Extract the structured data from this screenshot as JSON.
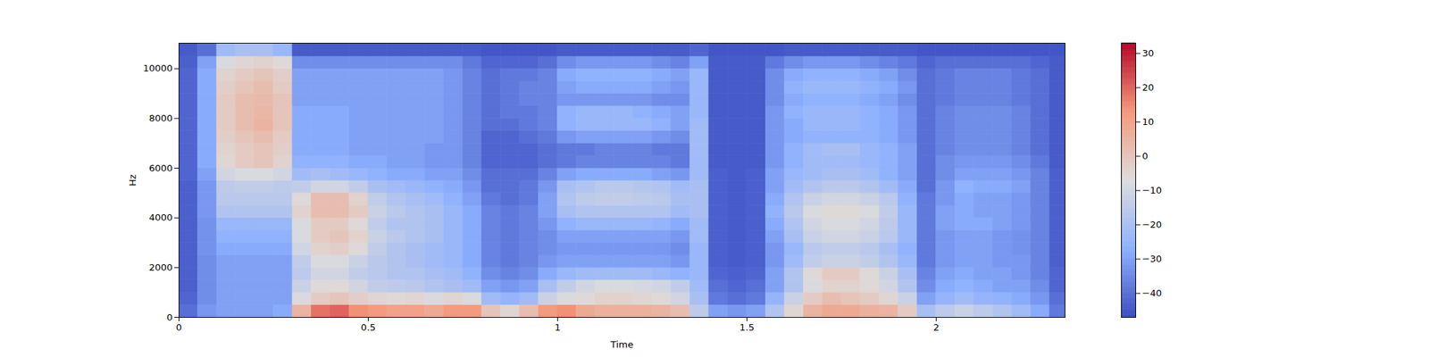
{
  "chart_data": {
    "type": "heatmap",
    "x_label": "Time",
    "y_label": "Hz",
    "xlim": [
      0,
      2.34
    ],
    "ylim": [
      0,
      11025
    ],
    "xticks": [
      0,
      0.5,
      1,
      1.5,
      2
    ],
    "yticks": [
      0,
      2000,
      4000,
      6000,
      8000,
      10000
    ],
    "time_bins": [
      0,
      0.05,
      0.1,
      0.15,
      0.2,
      0.25,
      0.3,
      0.35,
      0.4,
      0.45,
      0.5,
      0.55,
      0.6,
      0.65,
      0.7,
      0.75,
      0.8,
      0.85,
      0.9,
      0.95,
      1.0,
      1.05,
      1.1,
      1.15,
      1.2,
      1.25,
      1.3,
      1.35,
      1.4,
      1.45,
      1.5,
      1.55,
      1.6,
      1.65,
      1.7,
      1.75,
      1.8,
      1.85,
      1.9,
      1.95,
      2.0,
      2.05,
      2.1,
      2.15,
      2.2,
      2.25,
      2.3,
      2.34
    ],
    "freq_bins": [
      0,
      500,
      1000,
      1500,
      2000,
      2500,
      3000,
      3500,
      4000,
      4500,
      5000,
      5500,
      6000,
      6500,
      7000,
      7500,
      8000,
      8500,
      9000,
      9500,
      10000,
      10500,
      11025
    ],
    "cells": [
      [
        -40,
        -32,
        -30,
        -30,
        -30,
        -28,
        5,
        18,
        20,
        14,
        12,
        10,
        10,
        8,
        12,
        12,
        0,
        -5,
        2,
        12,
        14,
        8,
        6,
        6,
        6,
        5,
        2,
        -15,
        -30,
        -32,
        -30,
        -18,
        -5,
        5,
        8,
        8,
        6,
        5,
        -2,
        -20,
        -15,
        -12,
        -15,
        -18,
        -22,
        -28,
        -38
      ],
      [
        -42,
        -34,
        -30,
        -30,
        -30,
        -30,
        -8,
        -2,
        0,
        -3,
        -5,
        -6,
        -5,
        -8,
        -5,
        -8,
        -22,
        -25,
        -22,
        -12,
        -8,
        -6,
        -4,
        -4,
        -5,
        -6,
        -10,
        -20,
        -38,
        -40,
        -38,
        -25,
        -12,
        -2,
        2,
        0,
        -2,
        -5,
        -12,
        -30,
        -25,
        -22,
        -25,
        -26,
        -28,
        -32,
        -40
      ],
      [
        -43,
        -34,
        -30,
        -30,
        -30,
        -30,
        -12,
        -6,
        -6,
        -10,
        -14,
        -15,
        -16,
        -18,
        -20,
        -22,
        -30,
        -32,
        -30,
        -20,
        -14,
        -10,
        -8,
        -8,
        -9,
        -10,
        -14,
        -22,
        -40,
        -42,
        -40,
        -30,
        -18,
        -8,
        -4,
        -4,
        -6,
        -10,
        -18,
        -34,
        -28,
        -26,
        -28,
        -30,
        -30,
        -34,
        -42
      ],
      [
        -43,
        -34,
        -30,
        -30,
        -30,
        -30,
        -15,
        -10,
        -10,
        -14,
        -16,
        -18,
        -18,
        -20,
        -22,
        -26,
        -34,
        -36,
        -34,
        -28,
        -24,
        -22,
        -22,
        -22,
        -22,
        -24,
        -26,
        -24,
        -42,
        -43,
        -42,
        -30,
        -18,
        -6,
        -2,
        -2,
        -6,
        -12,
        -20,
        -36,
        -30,
        -28,
        -30,
        -30,
        -32,
        -36,
        -42
      ],
      [
        -43,
        -34,
        -30,
        -30,
        -30,
        -30,
        -14,
        -8,
        -8,
        -12,
        -16,
        -18,
        -20,
        -22,
        -24,
        -28,
        -36,
        -38,
        -36,
        -32,
        -30,
        -30,
        -30,
        -30,
        -30,
        -30,
        -32,
        -24,
        -43,
        -44,
        -43,
        -32,
        -22,
        -14,
        -12,
        -12,
        -14,
        -18,
        -24,
        -38,
        -32,
        -30,
        -30,
        -32,
        -32,
        -36,
        -43
      ],
      [
        -43,
        -33,
        -28,
        -28,
        -28,
        -28,
        -10,
        -4,
        -3,
        -6,
        -14,
        -18,
        -20,
        -22,
        -24,
        -28,
        -36,
        -38,
        -36,
        -34,
        -32,
        -32,
        -32,
        -32,
        -32,
        -32,
        -34,
        -24,
        -43,
        -44,
        -43,
        -32,
        -24,
        -16,
        -14,
        -14,
        -16,
        -20,
        -26,
        -38,
        -32,
        -30,
        -30,
        -32,
        -33,
        -36,
        -43
      ],
      [
        -43,
        -33,
        -26,
        -26,
        -26,
        -26,
        -8,
        -2,
        0,
        -4,
        -12,
        -16,
        -18,
        -20,
        -24,
        -28,
        -36,
        -38,
        -36,
        -34,
        -30,
        -30,
        -30,
        -30,
        -30,
        -30,
        -32,
        -22,
        -43,
        -44,
        -43,
        -30,
        -20,
        -12,
        -10,
        -10,
        -12,
        -16,
        -24,
        -38,
        -32,
        -30,
        -30,
        -32,
        -33,
        -36,
        -43
      ],
      [
        -43,
        -33,
        -24,
        -24,
        -24,
        -24,
        -8,
        -2,
        -2,
        -6,
        -14,
        -18,
        -18,
        -20,
        -24,
        -28,
        -36,
        -38,
        -36,
        -32,
        -26,
        -24,
        -24,
        -24,
        -24,
        -25,
        -28,
        -22,
        -43,
        -44,
        -43,
        -28,
        -18,
        -10,
        -8,
        -8,
        -10,
        -15,
        -24,
        -38,
        -30,
        -28,
        -28,
        -30,
        -32,
        -36,
        -43
      ],
      [
        -43,
        -32,
        -18,
        -18,
        -18,
        -18,
        -4,
        2,
        2,
        -2,
        -12,
        -16,
        -18,
        -20,
        -24,
        -28,
        -36,
        -38,
        -36,
        -30,
        -20,
        -18,
        -18,
        -18,
        -18,
        -18,
        -22,
        -20,
        -43,
        -44,
        -43,
        -26,
        -16,
        -8,
        -6,
        -6,
        -8,
        -14,
        -24,
        -38,
        -30,
        -28,
        -30,
        -30,
        -32,
        -36,
        -43
      ],
      [
        -43,
        -32,
        -16,
        -16,
        -16,
        -16,
        -6,
        2,
        2,
        -4,
        -14,
        -18,
        -20,
        -22,
        -26,
        -30,
        -38,
        -40,
        -38,
        -30,
        -18,
        -15,
        -14,
        -14,
        -15,
        -16,
        -20,
        -20,
        -43,
        -44,
        -43,
        -28,
        -18,
        -12,
        -10,
        -10,
        -12,
        -16,
        -26,
        -38,
        -32,
        -28,
        -30,
        -30,
        -32,
        -36,
        -43
      ],
      [
        -43,
        -32,
        -15,
        -14,
        -14,
        -15,
        -14,
        -10,
        -10,
        -14,
        -20,
        -22,
        -24,
        -26,
        -28,
        -32,
        -40,
        -40,
        -38,
        -32,
        -20,
        -18,
        -16,
        -16,
        -17,
        -18,
        -22,
        -20,
        -43,
        -44,
        -43,
        -30,
        -22,
        -18,
        -16,
        -16,
        -18,
        -22,
        -28,
        -40,
        -32,
        -26,
        -28,
        -28,
        -30,
        -36,
        -43
      ],
      [
        -42,
        -30,
        -10,
        -8,
        -8,
        -10,
        -22,
        -20,
        -22,
        -24,
        -26,
        -28,
        -28,
        -30,
        -30,
        -34,
        -40,
        -40,
        -40,
        -36,
        -30,
        -28,
        -28,
        -28,
        -28,
        -30,
        -32,
        -22,
        -43,
        -44,
        -43,
        -30,
        -24,
        -22,
        -20,
        -20,
        -22,
        -26,
        -30,
        -40,
        -34,
        -30,
        -30,
        -30,
        -32,
        -36,
        -43
      ],
      [
        -42,
        -28,
        -5,
        -2,
        0,
        -4,
        -26,
        -26,
        -26,
        -28,
        -28,
        -30,
        -30,
        -32,
        -32,
        -36,
        -42,
        -42,
        -42,
        -40,
        -38,
        -36,
        -36,
        -36,
        -36,
        -36,
        -38,
        -22,
        -44,
        -44,
        -44,
        -32,
        -26,
        -22,
        -22,
        -22,
        -24,
        -26,
        -30,
        -40,
        -34,
        -32,
        -32,
        -32,
        -34,
        -38,
        -44
      ],
      [
        -42,
        -28,
        -4,
        -2,
        0,
        -3,
        -28,
        -28,
        -28,
        -30,
        -30,
        -30,
        -30,
        -32,
        -32,
        -36,
        -42,
        -42,
        -42,
        -40,
        -38,
        -38,
        -36,
        -36,
        -36,
        -38,
        -38,
        -22,
        -44,
        -44,
        -44,
        -32,
        -26,
        -22,
        -20,
        -20,
        -24,
        -26,
        -30,
        -40,
        -36,
        -34,
        -34,
        -34,
        -36,
        -40,
        -44
      ],
      [
        -42,
        -28,
        -3,
        0,
        2,
        -2,
        -28,
        -28,
        -28,
        -30,
        -30,
        -30,
        -30,
        -30,
        -32,
        -36,
        -42,
        -42,
        -40,
        -38,
        -32,
        -30,
        -30,
        -30,
        -30,
        -32,
        -34,
        -22,
        -44,
        -44,
        -44,
        -32,
        -28,
        -26,
        -26,
        -26,
        -26,
        -28,
        -32,
        -40,
        -36,
        -34,
        -34,
        -34,
        -36,
        -40,
        -44
      ],
      [
        -42,
        -28,
        -2,
        2,
        5,
        0,
        -28,
        -28,
        -28,
        -30,
        -30,
        -30,
        -30,
        -30,
        -32,
        -36,
        -40,
        -40,
        -38,
        -36,
        -26,
        -24,
        -24,
        -24,
        -24,
        -26,
        -30,
        -22,
        -44,
        -44,
        -44,
        -32,
        -28,
        -24,
        -24,
        -24,
        -26,
        -28,
        -32,
        -40,
        -36,
        -34,
        -34,
        -34,
        -36,
        -40,
        -44
      ],
      [
        -42,
        -28,
        -2,
        2,
        4,
        0,
        -28,
        -28,
        -28,
        -30,
        -30,
        -30,
        -30,
        -30,
        -32,
        -36,
        -40,
        -38,
        -38,
        -36,
        -26,
        -24,
        -24,
        -24,
        -26,
        -28,
        -30,
        -24,
        -44,
        -44,
        -44,
        -32,
        -26,
        -24,
        -24,
        -24,
        -26,
        -28,
        -32,
        -40,
        -36,
        -34,
        -34,
        -34,
        -36,
        -40,
        -44
      ],
      [
        -42,
        -28,
        -2,
        2,
        3,
        0,
        -30,
        -30,
        -30,
        -30,
        -30,
        -30,
        -30,
        -30,
        -32,
        -36,
        -40,
        -38,
        -36,
        -36,
        -32,
        -32,
        -32,
        -32,
        -32,
        -34,
        -34,
        -24,
        -44,
        -44,
        -44,
        -34,
        -28,
        -26,
        -26,
        -26,
        -28,
        -30,
        -34,
        -40,
        -38,
        -36,
        -36,
        -36,
        -38,
        -40,
        -44
      ],
      [
        -42,
        -28,
        -3,
        0,
        2,
        -2,
        -30,
        -30,
        -30,
        -30,
        -30,
        -30,
        -30,
        -30,
        -32,
        -36,
        -40,
        -38,
        -36,
        -36,
        -30,
        -28,
        -28,
        -28,
        -28,
        -30,
        -32,
        -24,
        -44,
        -44,
        -44,
        -34,
        -26,
        -24,
        -24,
        -24,
        -26,
        -28,
        -32,
        -40,
        -38,
        -36,
        -36,
        -36,
        -38,
        -40,
        -44
      ],
      [
        -42,
        -28,
        -4,
        -2,
        0,
        -3,
        -30,
        -30,
        -30,
        -30,
        -30,
        -30,
        -30,
        -30,
        -32,
        -36,
        -40,
        -38,
        -38,
        -36,
        -28,
        -26,
        -26,
        -26,
        -26,
        -28,
        -30,
        -24,
        -44,
        -44,
        -44,
        -34,
        -28,
        -26,
        -26,
        -26,
        -28,
        -30,
        -34,
        -40,
        -38,
        -36,
        -36,
        -36,
        -38,
        -40,
        -44
      ],
      [
        -43,
        -30,
        -8,
        -5,
        -4,
        -6,
        -34,
        -34,
        -34,
        -34,
        -34,
        -34,
        -34,
        -34,
        -34,
        -38,
        -42,
        -42,
        -42,
        -40,
        -34,
        -32,
        -32,
        -32,
        -32,
        -34,
        -36,
        -30,
        -44,
        -44,
        -44,
        -38,
        -34,
        -32,
        -32,
        -32,
        -34,
        -36,
        -38,
        -42,
        -40,
        -40,
        -40,
        -40,
        -40,
        -42,
        -44
      ],
      [
        -44,
        -40,
        -22,
        -20,
        -20,
        -24,
        -44,
        -44,
        -44,
        -44,
        -44,
        -44,
        -44,
        -44,
        -44,
        -44,
        -45,
        -45,
        -45,
        -45,
        -44,
        -44,
        -44,
        -44,
        -44,
        -44,
        -44,
        -42,
        -45,
        -45,
        -45,
        -45,
        -44,
        -44,
        -44,
        -44,
        -44,
        -44,
        -44,
        -45,
        -45,
        -45,
        -45,
        -45,
        -45,
        -45,
        -45
      ]
    ],
    "color_range": [
      -47,
      33
    ],
    "color_ticks": [
      {
        "value": -40,
        "label": "−40"
      },
      {
        "value": -30,
        "label": "−30"
      },
      {
        "value": -20,
        "label": "−20"
      },
      {
        "value": -10,
        "label": "−10"
      },
      0,
      10,
      20,
      30
    ]
  }
}
